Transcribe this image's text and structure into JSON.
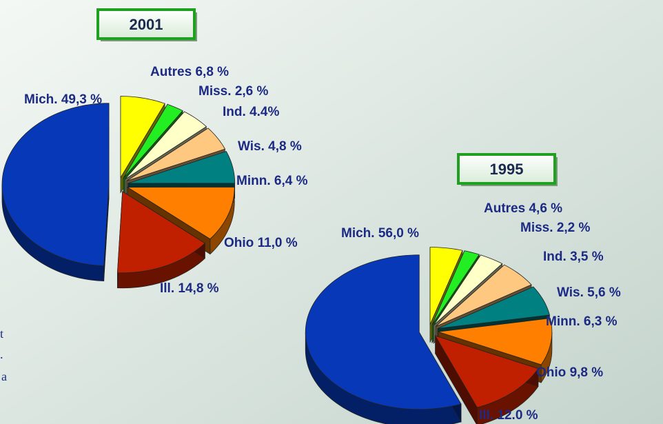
{
  "chart_data": [
    {
      "type": "pie",
      "title": "2001",
      "categories": [
        "Autres",
        "Miss.",
        "Ind.",
        "Wis.",
        "Minn.",
        "Ohio",
        "Ill.",
        "Mich."
      ],
      "values": [
        6.8,
        2.6,
        4.4,
        4.8,
        6.4,
        11.0,
        14.8,
        49.3
      ],
      "value_labels": [
        "6,8 %",
        "2,6 %",
        "4.4%",
        "4,8 %",
        "6,4 %",
        "11,0 %",
        "14,8 %",
        "49,3 %"
      ],
      "colors": [
        "#ffff00",
        "#22ee22",
        "#ffffc8",
        "#ffc880",
        "#008080",
        "#ff8000",
        "#c02000",
        "#0638b8"
      ]
    },
    {
      "type": "pie",
      "title": "1995",
      "categories": [
        "Autres",
        "Miss.",
        "Ind.",
        "Wis.",
        "Minn.",
        "Ohio",
        "Ill.",
        "Mich."
      ],
      "values": [
        4.6,
        2.2,
        3.5,
        5.6,
        6.3,
        9.8,
        12.0,
        56.0
      ],
      "value_labels": [
        "4,6 %",
        "2,2 %",
        "3,5 %",
        "5,6 %",
        "6,3 %",
        "9,8 %",
        "12.0 %",
        "56,0 %"
      ],
      "colors": [
        "#ffff00",
        "#22ee22",
        "#ffffc8",
        "#ffc880",
        "#008080",
        "#ff8000",
        "#c02000",
        "#0638b8"
      ]
    }
  ],
  "fragments": [
    "t",
    ".",
    "a"
  ]
}
